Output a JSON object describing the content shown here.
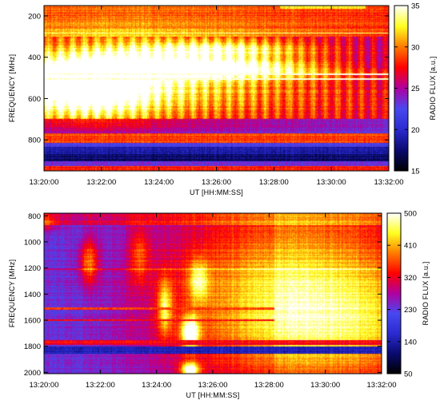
{
  "chart_data": [
    {
      "type": "heatmap",
      "xlabel": "UT [HH:MM:SS]",
      "ylabel": "FREQUENCY [MHz]",
      "colorbar_label": "RADIO FLUX [a.u.]",
      "x_range": [
        "13:20:00",
        "13:32:00"
      ],
      "x_ticks": [
        "13:20:00",
        "13:22:00",
        "13:24:00",
        "13:26:00",
        "13:28:00",
        "13:30:00",
        "13:32:00"
      ],
      "y_range": [
        150,
        950
      ],
      "y_inverted": true,
      "y_ticks": [
        200,
        400,
        600,
        800
      ],
      "colorbar_range": [
        15,
        35
      ],
      "colorbar_ticks": [
        15,
        20,
        25,
        30,
        35
      ],
      "colormap": [
        "#000000",
        "#0a0a70",
        "#2a2ad0",
        "#4848f0",
        "#b000a0",
        "#ff0000",
        "#ff7a00",
        "#ffff20",
        "#ffffff"
      ]
    },
    {
      "type": "heatmap",
      "xlabel": "UT [HH:MM:SS]",
      "ylabel": "FREQUENCY [MHz]",
      "colorbar_label": "RADIO FLUX [a.u.]",
      "x_range": [
        "13:20:00",
        "13:32:00"
      ],
      "x_ticks": [
        "13:20:00",
        "13:22:00",
        "13:24:00",
        "13:26:00",
        "13:28:00",
        "13:30:00",
        "13:32:00"
      ],
      "y_range": [
        780,
        2010
      ],
      "y_inverted": true,
      "y_ticks": [
        800,
        1000,
        1200,
        1400,
        1600,
        1800,
        2000
      ],
      "colorbar_range": [
        50,
        500
      ],
      "colorbar_ticks": [
        50,
        140,
        230,
        320,
        410,
        500
      ],
      "colormap": [
        "#000000",
        "#0a0a70",
        "#2a2ad0",
        "#4848f0",
        "#b000a0",
        "#ff0000",
        "#ff7a00",
        "#ffff20",
        "#ffffff"
      ]
    }
  ]
}
